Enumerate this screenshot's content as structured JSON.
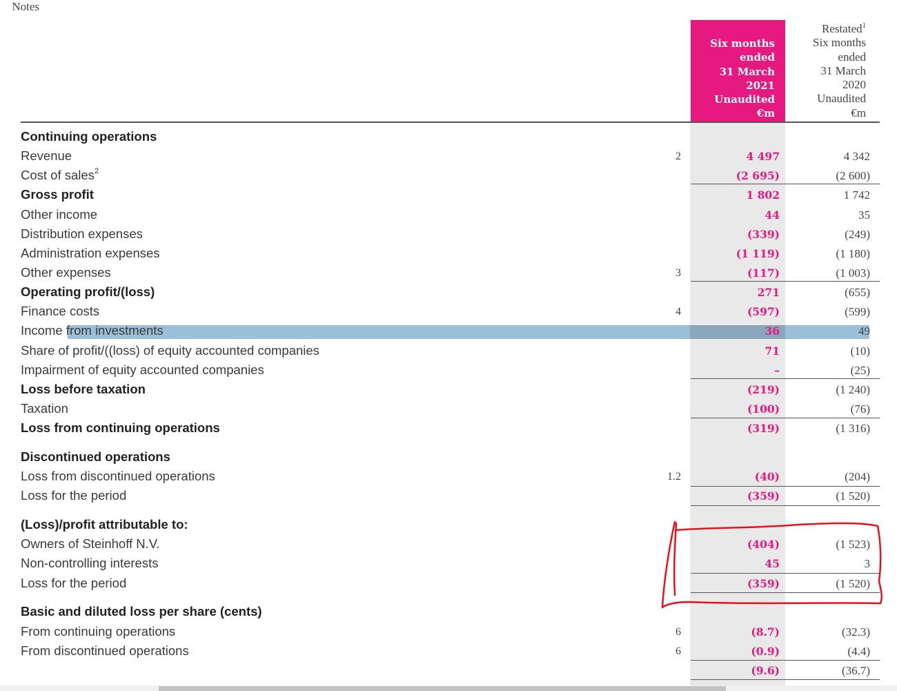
{
  "header": {
    "notes_label": "Notes",
    "current_column": "Six months\nended\n31 March\n2021\nUnaudited\n€m",
    "prior_column_prefix": "Restated",
    "prior_column_sup": "1",
    "prior_column": "Six months\nended\n31 March\n2020\nUnaudited\n€m"
  },
  "rows": [
    {
      "label": "Continuing operations",
      "type": "section"
    },
    {
      "label": "Revenue",
      "note": "2",
      "cur": "4 497",
      "prev": "4 342"
    },
    {
      "label": "Cost of sales",
      "label_sup": "2",
      "cur": "(2 695)",
      "prev": "(2 600)"
    },
    {
      "label": "Gross profit",
      "bold": true,
      "cur": "1 802",
      "prev": "1 742"
    },
    {
      "label": "Other income",
      "cur": "44",
      "prev": "35"
    },
    {
      "label": "Distribution expenses",
      "cur": "(339)",
      "prev": "(249)"
    },
    {
      "label": "Administration expenses",
      "cur": "(1 119)",
      "prev": "(1 180)"
    },
    {
      "label": "Other expenses",
      "note": "3",
      "cur": "(117)",
      "prev": "(1 003)"
    },
    {
      "label": "Operating profit/(loss)",
      "bold": true,
      "cur": "271",
      "prev": "(655)"
    },
    {
      "label": "Finance costs",
      "note": "4",
      "cur": "(597)",
      "prev": "(599)"
    },
    {
      "label": "Income from investments",
      "highlighted": true,
      "cur": "36",
      "prev": "49"
    },
    {
      "label": "Share of profit/((loss) of equity accounted companies",
      "cur": "71",
      "prev": "(10)"
    },
    {
      "label": "Impairment of equity accounted companies",
      "cur": "–",
      "prev": "(25)"
    },
    {
      "label": "Loss before taxation",
      "bold": true,
      "cur": "(219)",
      "prev": "(1 240)"
    },
    {
      "label": "Taxation",
      "cur": "(100)",
      "prev": "(76)"
    },
    {
      "label": "Loss from continuing operations",
      "bold": true,
      "cur": "(319)",
      "prev": "(1 316)"
    },
    {
      "label": "Discontinued operations",
      "type": "section"
    },
    {
      "label": "Loss from discontinued operations",
      "note": "1.2",
      "cur": "(40)",
      "prev": "(204)"
    },
    {
      "label": "Loss for the period",
      "cur": "(359)",
      "prev": "(1 520)"
    },
    {
      "label": "(Loss)/profit attributable to:",
      "type": "section"
    },
    {
      "label": "Owners of Steinhoff N.V.",
      "cur": "(404)",
      "prev": "(1 523)"
    },
    {
      "label": "Non-controlling interests",
      "cur": "45",
      "prev": "3"
    },
    {
      "label": "Loss for the period",
      "cur": "(359)",
      "prev": "(1 520)"
    },
    {
      "label": "Basic and diluted loss per share (cents)",
      "type": "section"
    },
    {
      "label": "From continuing operations",
      "note": "6",
      "cur": "(8.7)",
      "prev": "(32.3)"
    },
    {
      "label": "From discontinued operations",
      "note": "6",
      "cur": "(0.9)",
      "prev": "(4.4)"
    },
    {
      "label": "",
      "cur": "(9.6)",
      "prev": "(36.7)"
    }
  ],
  "colors": {
    "accent": "#e5197f",
    "highlight": "#9bbfd9",
    "annotation": "#e8101a"
  }
}
